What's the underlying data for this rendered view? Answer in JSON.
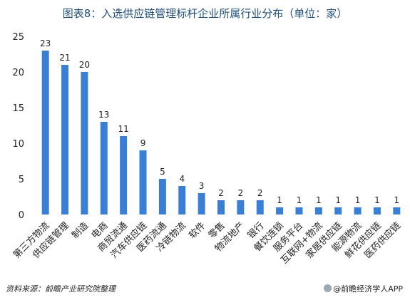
{
  "chart_data": {
    "type": "bar",
    "title": "图表8：入选供应链管理标杆企业所属行业分布（单位：家）",
    "categories": [
      "第三方物流",
      "供应链管理",
      "制造",
      "电商",
      "商贸流通",
      "汽车供应链",
      "医药流通",
      "冷链物流",
      "软件",
      "零售",
      "物流地产",
      "银行",
      "餐饮连锁",
      "服务平台",
      "互联网+物流",
      "家居供应链",
      "能源物流",
      "鲜花供应链",
      "医药供应链"
    ],
    "values": [
      23,
      21,
      20,
      13,
      11,
      9,
      5,
      4,
      3,
      2,
      2,
      2,
      1,
      1,
      1,
      1,
      1,
      1,
      1
    ],
    "ylim": [
      0,
      25
    ],
    "yticks": [
      0,
      5,
      10,
      15,
      20,
      25
    ],
    "grid": false,
    "bar_color": "#3a7fd6"
  },
  "footer": {
    "source": "资料来源：前瞻产业研究院整理",
    "brand": "@前瞻经济学人APP"
  },
  "watermark": "前瞻产业研究院"
}
